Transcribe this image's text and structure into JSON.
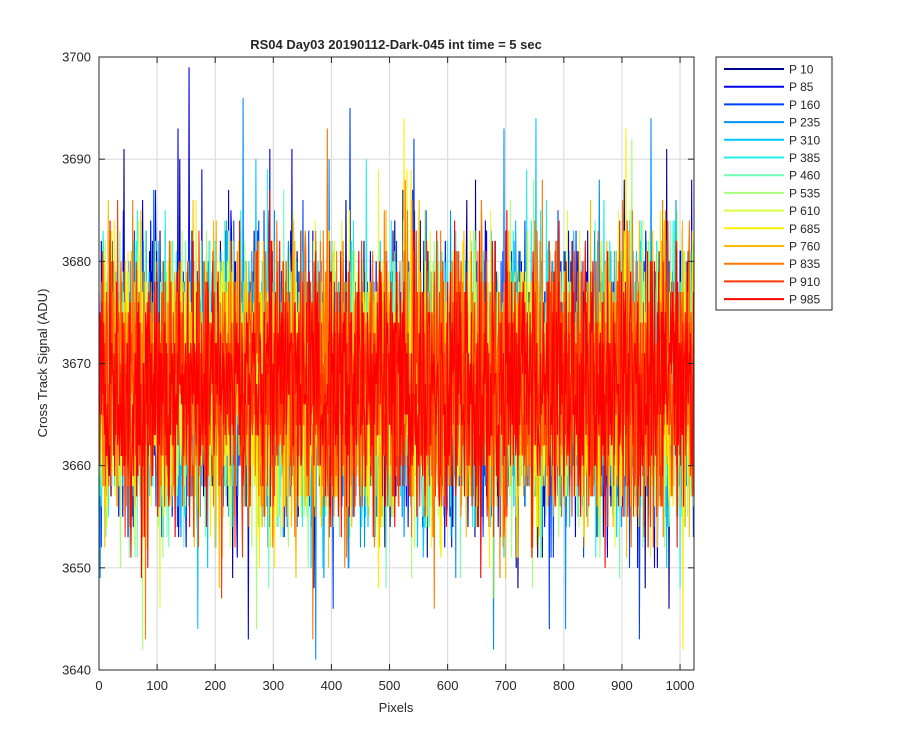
{
  "chart_data": {
    "type": "line",
    "title": "RS04 Day03 20190112-Dark-045 int time = 5 sec",
    "xlabel": "Pixels",
    "ylabel": "Cross Track Signal (ADU)",
    "xlim": [
      0,
      1024
    ],
    "ylim": [
      3640,
      3700
    ],
    "x_ticks": [
      0,
      100,
      200,
      300,
      400,
      500,
      600,
      700,
      800,
      900,
      1000
    ],
    "y_ticks": [
      3640,
      3650,
      3660,
      3670,
      3680,
      3690,
      3700
    ],
    "grid": true,
    "legend_position": "outside-top-right",
    "n_points": 1024,
    "noise_summary": {
      "mean": 3668,
      "std": 6.5,
      "min": 3641,
      "max": 3699
    },
    "series": [
      {
        "name": "P 10",
        "color": "#00008f"
      },
      {
        "name": "P 85",
        "color": "#0000e8"
      },
      {
        "name": "P 160",
        "color": "#0040ff"
      },
      {
        "name": "P 235",
        "color": "#0090ff"
      },
      {
        "name": "P 310",
        "color": "#00c8ff"
      },
      {
        "name": "P 385",
        "color": "#20f0e8"
      },
      {
        "name": "P 460",
        "color": "#70ffb0"
      },
      {
        "name": "P 535",
        "color": "#a8ff78"
      },
      {
        "name": "P 610",
        "color": "#d8ff40"
      },
      {
        "name": "P 685",
        "color": "#ffee00"
      },
      {
        "name": "P 760",
        "color": "#ffbb00"
      },
      {
        "name": "P 835",
        "color": "#ff7700"
      },
      {
        "name": "P 910",
        "color": "#ff3a00"
      },
      {
        "name": "P 985",
        "color": "#ff0000"
      }
    ],
    "extreme_points": [
      {
        "series": "P 85",
        "x": 155,
        "y": 3699
      },
      {
        "series": "P 235",
        "x": 248,
        "y": 3696
      },
      {
        "series": "P 160",
        "x": 432,
        "y": 3695
      },
      {
        "series": "P 685",
        "x": 525,
        "y": 3694
      },
      {
        "series": "P 835",
        "x": 393,
        "y": 3693
      },
      {
        "series": "P 310",
        "x": 752,
        "y": 3694
      },
      {
        "series": "P 235",
        "x": 950,
        "y": 3694
      },
      {
        "series": "P 685",
        "x": 907,
        "y": 3693
      },
      {
        "series": "P 85",
        "x": 136,
        "y": 3693
      },
      {
        "series": "P 235",
        "x": 373,
        "y": 3641
      },
      {
        "series": "P 835",
        "x": 368,
        "y": 3643
      },
      {
        "series": "P 835",
        "x": 80,
        "y": 3643
      },
      {
        "series": "P 685",
        "x": 1005,
        "y": 3642
      },
      {
        "series": "P 160",
        "x": 930,
        "y": 3643
      },
      {
        "series": "P 235",
        "x": 803,
        "y": 3644
      },
      {
        "series": "P 310",
        "x": 170,
        "y": 3644
      }
    ]
  }
}
